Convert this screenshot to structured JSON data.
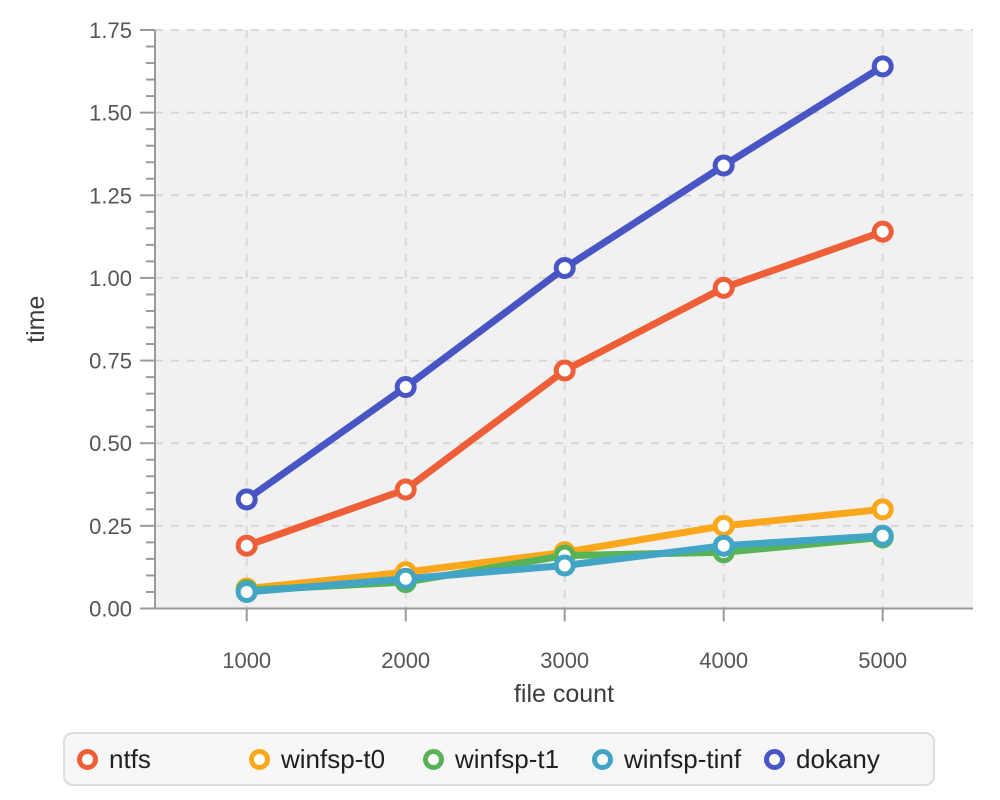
{
  "chart_data": {
    "type": "line",
    "x": [
      1000,
      2000,
      3000,
      4000,
      5000
    ],
    "xlabel": "file count",
    "ylabel": "time",
    "ylim": [
      0,
      1.75
    ],
    "ytick_step": 0.25,
    "ytick_minor_step": 0.05,
    "grid": true,
    "grid_style": "dashed",
    "legend_position": "bottom",
    "series": [
      {
        "name": "ntfs",
        "color": "#ee5f38",
        "values": [
          0.19,
          0.36,
          0.72,
          0.97,
          1.14
        ]
      },
      {
        "name": "winfsp-t0",
        "color": "#fba71b",
        "values": [
          0.06,
          0.11,
          0.17,
          0.25,
          0.3
        ]
      },
      {
        "name": "winfsp-t1",
        "color": "#57b355",
        "values": [
          0.055,
          0.08,
          0.16,
          0.17,
          0.215
        ]
      },
      {
        "name": "winfsp-tinf",
        "color": "#42a5c5",
        "values": [
          0.05,
          0.09,
          0.13,
          0.19,
          0.22
        ]
      },
      {
        "name": "dokany",
        "color": "#4855c5",
        "values": [
          0.33,
          0.67,
          1.03,
          1.34,
          1.64
        ]
      }
    ]
  },
  "theme": {
    "plot_bg": "#f1f1f2",
    "grid_color": "#d8d8d8",
    "axis_color": "#9a9a9a",
    "tick_label_color": "#565656",
    "axis_title_color": "#3c3c3c",
    "legend_border": "#dcdcdc",
    "legend_bg": "#f7f7f7",
    "legend_text": "#1f1f1f",
    "marker_fill": "#ffffff"
  }
}
